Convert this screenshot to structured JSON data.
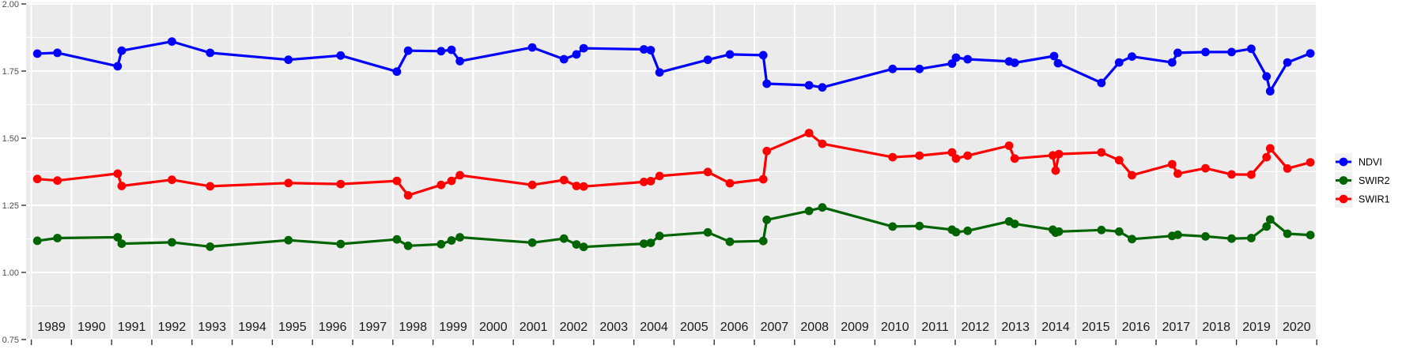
{
  "chart_data": {
    "type": "line",
    "title": "",
    "xlabel": "",
    "ylabel": "",
    "x_axis": {
      "tick_labels": [
        "1989",
        "1990",
        "1991",
        "1992",
        "1993",
        "1994",
        "1995",
        "1996",
        "1997",
        "1998",
        "1999",
        "2000",
        "2001",
        "2002",
        "2003",
        "2004",
        "2005",
        "2006",
        "2007",
        "2008",
        "2009",
        "2010",
        "2011",
        "2012",
        "2013",
        "2014",
        "2015",
        "2016",
        "2017",
        "2018",
        "2019",
        "2020"
      ],
      "boundary_years": [
        1989,
        1990,
        1991,
        1992,
        1993,
        1994,
        1995,
        1996,
        1997,
        1998,
        1999,
        2000,
        2001,
        2002,
        2003,
        2004,
        2005,
        2006,
        2007,
        2008,
        2009,
        2010,
        2011,
        2012,
        2013,
        2014,
        2015,
        2016,
        2017,
        2018,
        2019,
        2020,
        2021
      ],
      "domain": [
        1988.87,
        2021.0
      ],
      "grid": true
    },
    "y_axis": {
      "tick_labels": [
        "0.75",
        "1.00",
        "1.25",
        "1.50",
        "1.75",
        "2.00"
      ],
      "ticks": [
        0.75,
        1.0,
        1.25,
        1.5,
        1.75,
        2.0
      ],
      "minor_ticks": [
        0.875,
        1.125,
        1.375,
        1.625,
        1.875
      ],
      "range": [
        0.75,
        2.0
      ],
      "grid": true
    },
    "legend": {
      "position": "right",
      "entries": [
        {
          "label": "NDVI",
          "color": "#0000FF"
        },
        {
          "label": "SWIR2",
          "color": "#006400"
        },
        {
          "label": "SWIR1",
          "color": "#FF0000"
        }
      ]
    },
    "series": [
      {
        "name": "NDVI",
        "color": "#0000FF",
        "points": [
          [
            1989.15,
            1.815
          ],
          [
            1989.65,
            1.818
          ],
          [
            1991.15,
            1.768
          ],
          [
            1991.25,
            1.826
          ],
          [
            1992.5,
            1.86
          ],
          [
            1993.45,
            1.818
          ],
          [
            1995.4,
            1.792
          ],
          [
            1996.7,
            1.808
          ],
          [
            1998.1,
            1.748
          ],
          [
            1998.38,
            1.826
          ],
          [
            1999.2,
            1.824
          ],
          [
            1999.46,
            1.829
          ],
          [
            1999.67,
            1.787
          ],
          [
            2001.47,
            1.838
          ],
          [
            2002.26,
            1.794
          ],
          [
            2002.57,
            1.812
          ],
          [
            2002.75,
            1.835
          ],
          [
            2004.25,
            1.831
          ],
          [
            2004.42,
            1.828
          ],
          [
            2004.64,
            1.745
          ],
          [
            2005.84,
            1.792
          ],
          [
            2006.39,
            1.812
          ],
          [
            2007.22,
            1.809
          ],
          [
            2007.31,
            1.703
          ],
          [
            2008.36,
            1.697
          ],
          [
            2008.69,
            1.689
          ],
          [
            2010.44,
            1.758
          ],
          [
            2011.11,
            1.758
          ],
          [
            2011.92,
            1.778
          ],
          [
            2012.02,
            1.8
          ],
          [
            2012.31,
            1.794
          ],
          [
            2013.34,
            1.786
          ],
          [
            2013.48,
            1.781
          ],
          [
            2014.46,
            1.806
          ],
          [
            2014.56,
            1.779
          ],
          [
            2015.64,
            1.706
          ],
          [
            2016.08,
            1.782
          ],
          [
            2016.4,
            1.804
          ],
          [
            2017.4,
            1.782
          ],
          [
            2017.54,
            1.818
          ],
          [
            2018.23,
            1.821
          ],
          [
            2018.88,
            1.821
          ],
          [
            2019.37,
            1.833
          ],
          [
            2019.75,
            1.73
          ],
          [
            2019.84,
            1.675
          ],
          [
            2020.27,
            1.782
          ],
          [
            2020.84,
            1.816
          ]
        ]
      },
      {
        "name": "SWIR2",
        "color": "#006400",
        "points": [
          [
            1989.15,
            1.118
          ],
          [
            1989.65,
            1.128
          ],
          [
            1991.15,
            1.131
          ],
          [
            1991.25,
            1.107
          ],
          [
            1992.5,
            1.112
          ],
          [
            1993.45,
            1.096
          ],
          [
            1995.4,
            1.12
          ],
          [
            1996.7,
            1.106
          ],
          [
            1998.1,
            1.123
          ],
          [
            1998.38,
            1.099
          ],
          [
            1999.2,
            1.105
          ],
          [
            1999.46,
            1.119
          ],
          [
            1999.67,
            1.131
          ],
          [
            2001.47,
            1.111
          ],
          [
            2002.26,
            1.126
          ],
          [
            2002.57,
            1.104
          ],
          [
            2002.75,
            1.095
          ],
          [
            2004.25,
            1.107
          ],
          [
            2004.42,
            1.11
          ],
          [
            2004.64,
            1.136
          ],
          [
            2005.84,
            1.149
          ],
          [
            2006.39,
            1.114
          ],
          [
            2007.22,
            1.117
          ],
          [
            2007.31,
            1.196
          ],
          [
            2008.36,
            1.229
          ],
          [
            2008.69,
            1.242
          ],
          [
            2010.44,
            1.171
          ],
          [
            2011.11,
            1.173
          ],
          [
            2011.92,
            1.159
          ],
          [
            2012.02,
            1.15
          ],
          [
            2012.31,
            1.155
          ],
          [
            2013.34,
            1.19
          ],
          [
            2013.48,
            1.181
          ],
          [
            2014.43,
            1.159
          ],
          [
            2014.5,
            1.148
          ],
          [
            2014.58,
            1.152
          ],
          [
            2015.64,
            1.158
          ],
          [
            2016.08,
            1.152
          ],
          [
            2016.4,
            1.124
          ],
          [
            2017.4,
            1.136
          ],
          [
            2017.54,
            1.14
          ],
          [
            2018.23,
            1.134
          ],
          [
            2018.88,
            1.126
          ],
          [
            2019.37,
            1.128
          ],
          [
            2019.75,
            1.171
          ],
          [
            2019.84,
            1.197
          ],
          [
            2020.27,
            1.144
          ],
          [
            2020.84,
            1.139
          ]
        ]
      },
      {
        "name": "SWIR1",
        "color": "#FF0000",
        "points": [
          [
            1989.15,
            1.348
          ],
          [
            1989.65,
            1.342
          ],
          [
            1991.15,
            1.368
          ],
          [
            1991.25,
            1.322
          ],
          [
            1992.5,
            1.345
          ],
          [
            1993.45,
            1.321
          ],
          [
            1995.4,
            1.333
          ],
          [
            1996.7,
            1.329
          ],
          [
            1998.1,
            1.341
          ],
          [
            1998.38,
            1.287
          ],
          [
            1999.2,
            1.326
          ],
          [
            1999.46,
            1.341
          ],
          [
            1999.67,
            1.362
          ],
          [
            2001.47,
            1.326
          ],
          [
            2002.26,
            1.344
          ],
          [
            2002.57,
            1.322
          ],
          [
            2002.75,
            1.32
          ],
          [
            2004.25,
            1.337
          ],
          [
            2004.42,
            1.34
          ],
          [
            2004.64,
            1.359
          ],
          [
            2005.84,
            1.374
          ],
          [
            2006.39,
            1.332
          ],
          [
            2007.22,
            1.347
          ],
          [
            2007.31,
            1.452
          ],
          [
            2008.36,
            1.519
          ],
          [
            2008.69,
            1.479
          ],
          [
            2010.44,
            1.429
          ],
          [
            2011.11,
            1.435
          ],
          [
            2011.92,
            1.447
          ],
          [
            2012.02,
            1.424
          ],
          [
            2012.31,
            1.435
          ],
          [
            2013.34,
            1.472
          ],
          [
            2013.48,
            1.424
          ],
          [
            2014.43,
            1.436
          ],
          [
            2014.5,
            1.379
          ],
          [
            2014.58,
            1.441
          ],
          [
            2015.64,
            1.447
          ],
          [
            2016.08,
            1.418
          ],
          [
            2016.4,
            1.362
          ],
          [
            2017.4,
            1.403
          ],
          [
            2017.54,
            1.368
          ],
          [
            2018.23,
            1.388
          ],
          [
            2018.88,
            1.365
          ],
          [
            2019.37,
            1.364
          ],
          [
            2019.75,
            1.429
          ],
          [
            2019.84,
            1.462
          ],
          [
            2020.27,
            1.387
          ],
          [
            2020.84,
            1.41
          ]
        ]
      }
    ]
  },
  "colors": {
    "figure_bg": "#FFFFFF",
    "panel_bg": "#EBEBEB",
    "grid": "#FFFFFF",
    "x_label_text": "#1A1A1A",
    "y_label_text": "#4D4D4D",
    "tick_mark": "#333333",
    "legend_text": "#000000",
    "legend_key_bg": "#F2F2F2"
  }
}
